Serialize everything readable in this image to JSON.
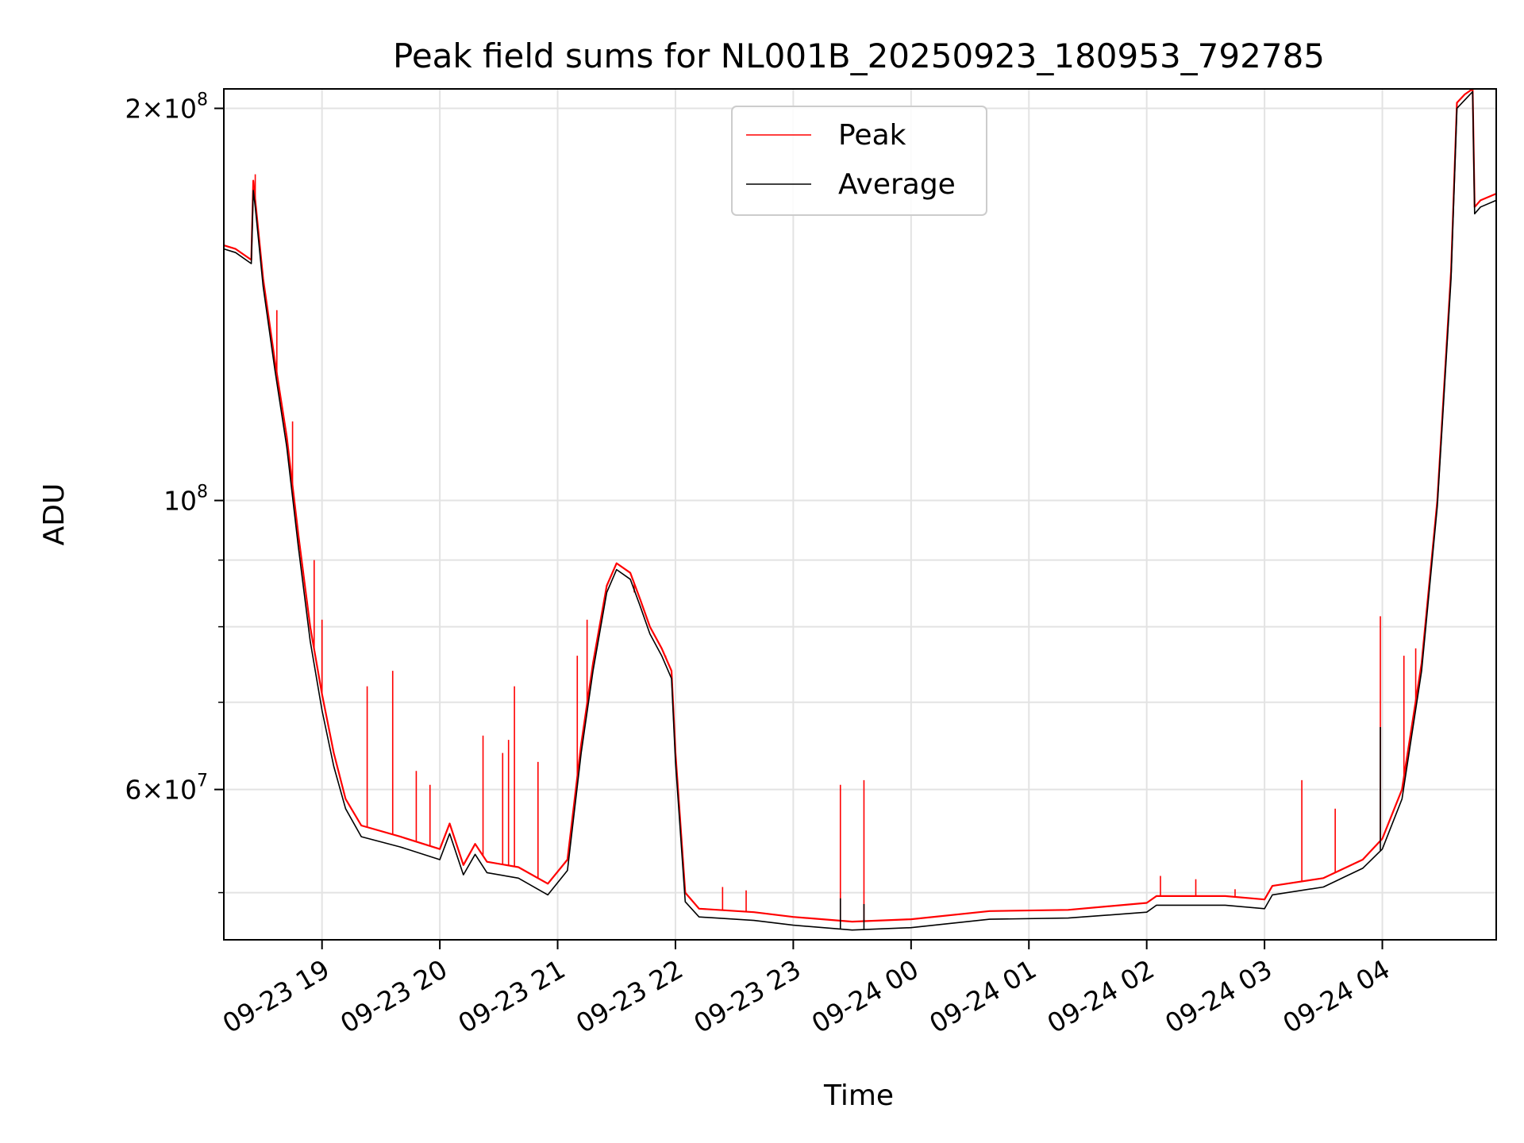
{
  "chart_data": {
    "type": "line",
    "title": "Peak field sums for NL001B_20250923_180953_792785",
    "xlabel": "Time",
    "ylabel": "ADU",
    "yscale": "log",
    "ylim": [
      46000000,
      207000000
    ],
    "xlim": [
      "2025-09-23 18:10",
      "2025-09-24 04:58"
    ],
    "grid": true,
    "legend": "upper center",
    "x_ticks": [
      {
        "t": "2025-09-23 19:00",
        "label": "09-23 19"
      },
      {
        "t": "2025-09-23 20:00",
        "label": "09-23 20"
      },
      {
        "t": "2025-09-23 21:00",
        "label": "09-23 21"
      },
      {
        "t": "2025-09-23 22:00",
        "label": "09-23 22"
      },
      {
        "t": "2025-09-23 23:00",
        "label": "09-23 23"
      },
      {
        "t": "2025-09-24 00:00",
        "label": "09-24 00"
      },
      {
        "t": "2025-09-24 01:00",
        "label": "09-24 01"
      },
      {
        "t": "2025-09-24 02:00",
        "label": "09-24 02"
      },
      {
        "t": "2025-09-24 03:00",
        "label": "09-24 03"
      },
      {
        "t": "2025-09-24 04:00",
        "label": "09-24 04"
      }
    ],
    "y_major_ticks": [
      {
        "value": 60000000,
        "base": "6",
        "exp": "7"
      },
      {
        "value": 100000000,
        "base": "",
        "exp": "8"
      },
      {
        "value": 200000000,
        "base": "2",
        "exp": "8"
      }
    ],
    "y_minor_ticks": [
      50000000,
      70000000,
      80000000,
      90000000
    ],
    "series": [
      {
        "name": "Peak",
        "color": "#ff0000",
        "points": [
          [
            "2025-09-23 18:10",
            157000000
          ],
          [
            "2025-09-23 18:16",
            156000000
          ],
          [
            "2025-09-23 18:24",
            153000000
          ],
          [
            "2025-09-23 18:25",
            176000000
          ],
          [
            "2025-09-23 18:26",
            170000000
          ],
          [
            "2025-09-23 18:30",
            148000000
          ],
          [
            "2025-09-23 18:36",
            128000000
          ],
          [
            "2025-09-23 18:42",
            112000000
          ],
          [
            "2025-09-23 18:48",
            94000000
          ],
          [
            "2025-09-23 18:54",
            80000000
          ],
          [
            "2025-09-23 19:00",
            71000000
          ],
          [
            "2025-09-23 19:06",
            64000000
          ],
          [
            "2025-09-23 19:12",
            59000000
          ],
          [
            "2025-09-23 19:20",
            56300000
          ],
          [
            "2025-09-23 19:40",
            55200000
          ],
          [
            "2025-09-23 20:00",
            54000000
          ],
          [
            "2025-09-23 20:05",
            56500000
          ],
          [
            "2025-09-23 20:12",
            52500000
          ],
          [
            "2025-09-23 20:18",
            54500000
          ],
          [
            "2025-09-23 20:24",
            52800000
          ],
          [
            "2025-09-23 20:40",
            52300000
          ],
          [
            "2025-09-23 20:55",
            50800000
          ],
          [
            "2025-09-23 21:05",
            53000000
          ],
          [
            "2025-09-23 21:12",
            65000000
          ],
          [
            "2025-09-23 21:18",
            75000000
          ],
          [
            "2025-09-23 21:25",
            86000000
          ],
          [
            "2025-09-23 21:30",
            89500000
          ],
          [
            "2025-09-23 21:37",
            88000000
          ],
          [
            "2025-09-23 21:42",
            84000000
          ],
          [
            "2025-09-23 21:47",
            80000000
          ],
          [
            "2025-09-23 21:53",
            77000000
          ],
          [
            "2025-09-23 21:58",
            74000000
          ],
          [
            "2025-09-23 22:00",
            64000000
          ],
          [
            "2025-09-23 22:05",
            50000000
          ],
          [
            "2025-09-23 22:12",
            48600000
          ],
          [
            "2025-09-23 22:40",
            48300000
          ],
          [
            "2025-09-23 23:00",
            47900000
          ],
          [
            "2025-09-23 23:30",
            47500000
          ],
          [
            "2025-09-24 00:00",
            47700000
          ],
          [
            "2025-09-24 00:40",
            48400000
          ],
          [
            "2025-09-24 01:20",
            48500000
          ],
          [
            "2025-09-24 02:00",
            49100000
          ],
          [
            "2025-09-24 02:05",
            49700000
          ],
          [
            "2025-09-24 02:40",
            49700000
          ],
          [
            "2025-09-24 03:00",
            49400000
          ],
          [
            "2025-09-24 03:04",
            50600000
          ],
          [
            "2025-09-24 03:30",
            51300000
          ],
          [
            "2025-09-24 03:50",
            53000000
          ],
          [
            "2025-09-24 04:00",
            55000000
          ],
          [
            "2025-09-24 04:10",
            60000000
          ],
          [
            "2025-09-24 04:20",
            75000000
          ],
          [
            "2025-09-24 04:28",
            100000000
          ],
          [
            "2025-09-24 04:35",
            150000000
          ],
          [
            "2025-09-24 04:38",
            202000000
          ],
          [
            "2025-09-24 04:42",
            205000000
          ],
          [
            "2025-09-24 04:46",
            207000000
          ],
          [
            "2025-09-24 04:47",
            168000000
          ],
          [
            "2025-09-24 04:50",
            170000000
          ],
          [
            "2025-09-24 04:58",
            172000000
          ]
        ],
        "spikes": [
          [
            "2025-09-23 18:26",
            178000000
          ],
          [
            "2025-09-23 18:37",
            140000000
          ],
          [
            "2025-09-23 18:45",
            115000000
          ],
          [
            "2025-09-23 18:56",
            90000000
          ],
          [
            "2025-09-23 19:00",
            81000000
          ],
          [
            "2025-09-23 19:23",
            72000000
          ],
          [
            "2025-09-23 19:36",
            74000000
          ],
          [
            "2025-09-23 19:48",
            62000000
          ],
          [
            "2025-09-23 19:55",
            60500000
          ],
          [
            "2025-09-23 20:22",
            66000000
          ],
          [
            "2025-09-23 20:32",
            64000000
          ],
          [
            "2025-09-23 20:35",
            65500000
          ],
          [
            "2025-09-23 20:38",
            72000000
          ],
          [
            "2025-09-23 20:50",
            63000000
          ],
          [
            "2025-09-23 21:10",
            76000000
          ],
          [
            "2025-09-23 21:15",
            81000000
          ],
          [
            "2025-09-23 21:39",
            85000000
          ],
          [
            "2025-09-23 21:55",
            76000000
          ],
          [
            "2025-09-23 22:24",
            50500000
          ],
          [
            "2025-09-23 22:36",
            50200000
          ],
          [
            "2025-09-23 23:24",
            60500000
          ],
          [
            "2025-09-23 23:36",
            61000000
          ],
          [
            "2025-09-24 02:07",
            51500000
          ],
          [
            "2025-09-24 02:25",
            51200000
          ],
          [
            "2025-09-24 02:45",
            50300000
          ],
          [
            "2025-09-24 03:19",
            61000000
          ],
          [
            "2025-09-24 03:36",
            58000000
          ],
          [
            "2025-09-24 03:59",
            81500000
          ],
          [
            "2025-09-24 04:11",
            76000000
          ],
          [
            "2025-09-24 04:17",
            77000000
          ]
        ]
      },
      {
        "name": "Average",
        "color": "#000000",
        "points": [
          [
            "2025-09-23 18:10",
            156000000
          ],
          [
            "2025-09-23 18:16",
            155000000
          ],
          [
            "2025-09-23 18:24",
            152000000
          ],
          [
            "2025-09-23 18:25",
            173000000
          ],
          [
            "2025-09-23 18:26",
            168000000
          ],
          [
            "2025-09-23 18:30",
            146000000
          ],
          [
            "2025-09-23 18:36",
            126000000
          ],
          [
            "2025-09-23 18:42",
            110000000
          ],
          [
            "2025-09-23 18:48",
            92000000
          ],
          [
            "2025-09-23 18:54",
            78000000
          ],
          [
            "2025-09-23 19:00",
            69000000
          ],
          [
            "2025-09-23 19:06",
            62500000
          ],
          [
            "2025-09-23 19:12",
            58000000
          ],
          [
            "2025-09-23 19:20",
            55200000
          ],
          [
            "2025-09-23 19:40",
            54200000
          ],
          [
            "2025-09-23 20:00",
            53000000
          ],
          [
            "2025-09-23 20:05",
            55500000
          ],
          [
            "2025-09-23 20:12",
            51600000
          ],
          [
            "2025-09-23 20:18",
            53500000
          ],
          [
            "2025-09-23 20:24",
            51800000
          ],
          [
            "2025-09-23 20:40",
            51300000
          ],
          [
            "2025-09-23 20:55",
            49800000
          ],
          [
            "2025-09-23 21:05",
            52000000
          ],
          [
            "2025-09-23 21:12",
            64000000
          ],
          [
            "2025-09-23 21:18",
            74000000
          ],
          [
            "2025-09-23 21:25",
            85000000
          ],
          [
            "2025-09-23 21:30",
            88500000
          ],
          [
            "2025-09-23 21:37",
            87000000
          ],
          [
            "2025-09-23 21:42",
            83000000
          ],
          [
            "2025-09-23 21:47",
            79000000
          ],
          [
            "2025-09-23 21:53",
            76000000
          ],
          [
            "2025-09-23 21:58",
            73000000
          ],
          [
            "2025-09-23 22:00",
            63000000
          ],
          [
            "2025-09-23 22:05",
            49200000
          ],
          [
            "2025-09-23 22:12",
            47900000
          ],
          [
            "2025-09-23 22:40",
            47600000
          ],
          [
            "2025-09-23 23:00",
            47200000
          ],
          [
            "2025-09-23 23:30",
            46800000
          ],
          [
            "2025-09-24 00:00",
            47000000
          ],
          [
            "2025-09-24 00:40",
            47700000
          ],
          [
            "2025-09-24 01:20",
            47800000
          ],
          [
            "2025-09-24 02:00",
            48300000
          ],
          [
            "2025-09-24 02:05",
            48900000
          ],
          [
            "2025-09-24 02:40",
            48900000
          ],
          [
            "2025-09-24 03:00",
            48600000
          ],
          [
            "2025-09-24 03:04",
            49800000
          ],
          [
            "2025-09-24 03:30",
            50500000
          ],
          [
            "2025-09-24 03:50",
            52200000
          ],
          [
            "2025-09-24 04:00",
            54000000
          ],
          [
            "2025-09-24 04:10",
            59000000
          ],
          [
            "2025-09-24 04:20",
            74000000
          ],
          [
            "2025-09-24 04:28",
            99000000
          ],
          [
            "2025-09-24 04:35",
            148000000
          ],
          [
            "2025-09-24 04:38",
            200000000
          ],
          [
            "2025-09-24 04:42",
            203000000
          ],
          [
            "2025-09-24 04:46",
            206000000
          ],
          [
            "2025-09-24 04:47",
            166000000
          ],
          [
            "2025-09-24 04:50",
            168000000
          ],
          [
            "2025-09-24 04:58",
            170000000
          ]
        ],
        "spikes": [
          [
            "2025-09-23 23:24",
            49500000
          ],
          [
            "2025-09-23 23:36",
            49000000
          ],
          [
            "2025-09-24 03:59",
            67000000
          ]
        ]
      }
    ]
  }
}
